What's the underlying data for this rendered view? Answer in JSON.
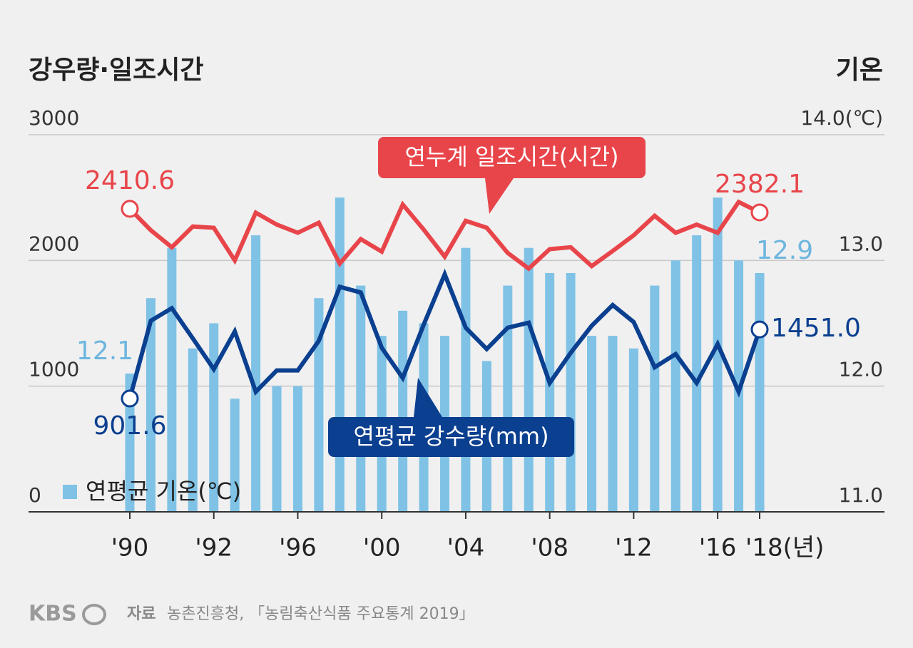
{
  "chart_data": {
    "type": "combo",
    "title": "강우량·일조시간",
    "y2_title": "기온",
    "categories": [
      "'90",
      null,
      null,
      null,
      "'92",
      null,
      null,
      null,
      "'96",
      null,
      null,
      null,
      "'00",
      null,
      null,
      null,
      "'04",
      null,
      null,
      null,
      "'08",
      null,
      null,
      null,
      "'12",
      null,
      null,
      null,
      "'16",
      null,
      "'18(년)"
    ],
    "ylim": [
      0,
      3000
    ],
    "yticks": [
      0,
      1000,
      2000,
      3000
    ],
    "y2lim": [
      11,
      14
    ],
    "y2ticks": [
      {
        "value": 11,
        "label": "11.0"
      },
      {
        "value": 12,
        "label": "12.0"
      },
      {
        "value": 13,
        "label": "13.0"
      },
      {
        "value": 14,
        "label": "14.0(℃)"
      }
    ],
    "grid": true,
    "series": [
      {
        "name": "연평균 기온(℃)",
        "type": "bar",
        "axis": "y2",
        "color": "#7fc2e6",
        "values": [
          12.1,
          12.7,
          13.1,
          12.3,
          12.5,
          11.9,
          13.2,
          12.0,
          12.0,
          12.7,
          13.5,
          12.8,
          12.4,
          12.6,
          12.5,
          12.4,
          13.1,
          12.2,
          12.8,
          13.1,
          12.9,
          12.9,
          12.4,
          12.4,
          12.3,
          12.8,
          13.0,
          13.2,
          13.5,
          13.0,
          12.9
        ],
        "value_labels": [
          "12.1",
          null,
          null,
          null,
          null,
          null,
          null,
          null,
          null,
          null,
          null,
          null,
          null,
          null,
          null,
          null,
          null,
          null,
          null,
          null,
          null,
          null,
          null,
          null,
          null,
          null,
          null,
          null,
          null,
          null,
          "12.9"
        ]
      },
      {
        "name": "연누계 일조시간(시간)",
        "type": "line",
        "color": "#e8454a",
        "values": [
          2410.6,
          2240,
          2105,
          2270,
          2260,
          2000,
          2380,
          2285,
          2220,
          2300,
          1975,
          2170,
          2070,
          2445,
          2245,
          2030,
          2315,
          2260,
          2060,
          1935,
          2090,
          2105,
          1955,
          2075,
          2200,
          2355,
          2220,
          2285,
          2220,
          2465,
          2382.1
        ],
        "value_labels": [
          "2410.6",
          null,
          null,
          null,
          null,
          null,
          null,
          null,
          null,
          null,
          null,
          null,
          null,
          null,
          null,
          null,
          null,
          null,
          null,
          null,
          null,
          null,
          null,
          null,
          null,
          null,
          null,
          null,
          null,
          null,
          "2382.1"
        ]
      },
      {
        "name": "연평균 강수량(mm)",
        "type": "line",
        "color": "#0b3f8f",
        "values": [
          901.6,
          1520,
          1620,
          1380,
          1135,
          1435,
          955,
          1125,
          1125,
          1360,
          1790,
          1745,
          1305,
          1065,
          1490,
          1890,
          1465,
          1295,
          1465,
          1505,
          1025,
          1265,
          1480,
          1645,
          1510,
          1150,
          1255,
          1025,
          1335,
          955,
          1451
        ],
        "value_labels": [
          "901.6",
          null,
          null,
          null,
          null,
          null,
          null,
          null,
          null,
          null,
          null,
          null,
          null,
          null,
          null,
          null,
          null,
          null,
          null,
          null,
          null,
          null,
          null,
          null,
          null,
          null,
          null,
          null,
          null,
          null,
          "1451.0"
        ]
      }
    ],
    "source_label": "자료",
    "source": "농촌진흥청, 「농림축산식품 주요통계 2019」",
    "logo": "KBS"
  }
}
